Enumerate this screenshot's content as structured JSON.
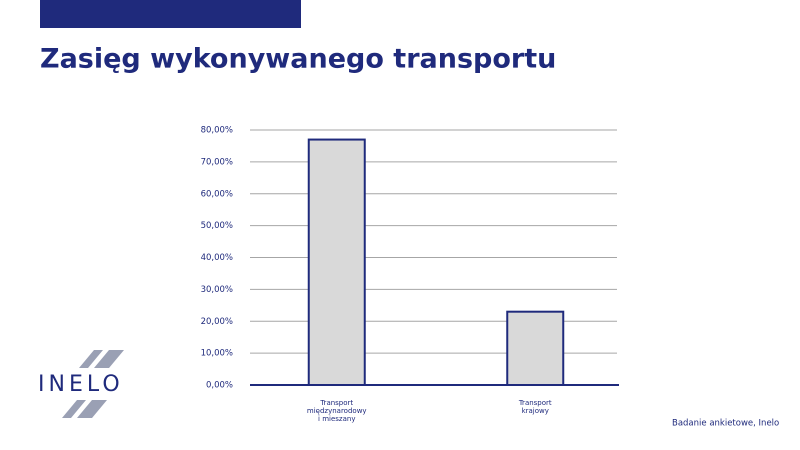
{
  "chart_data": {
    "type": "bar",
    "title": "Zasięg wykonywanego transportu",
    "categories": [
      "Transport międzynarodowy i mieszany",
      "Transport krajowy"
    ],
    "values": [
      77,
      23
    ],
    "color": "#d9d9d9",
    "edge_color": "#1f2a7c",
    "ylim": [
      0,
      80
    ],
    "yticks": [
      {
        "value": 0,
        "label": "0,00%"
      },
      {
        "value": 10,
        "label": "10,00%"
      },
      {
        "value": 20,
        "label": "20,00%"
      },
      {
        "value": 30,
        "label": "30,00%"
      },
      {
        "value": 40,
        "label": "40,00%"
      },
      {
        "value": 50,
        "label": "50,00%"
      },
      {
        "value": 60,
        "label": "60,00%"
      },
      {
        "value": 70,
        "label": "70,00%"
      },
      {
        "value": 80,
        "label": "80,00%"
      }
    ],
    "grid": true
  },
  "logo": "INELO",
  "source": "Badanie ankietowe, Inelo"
}
